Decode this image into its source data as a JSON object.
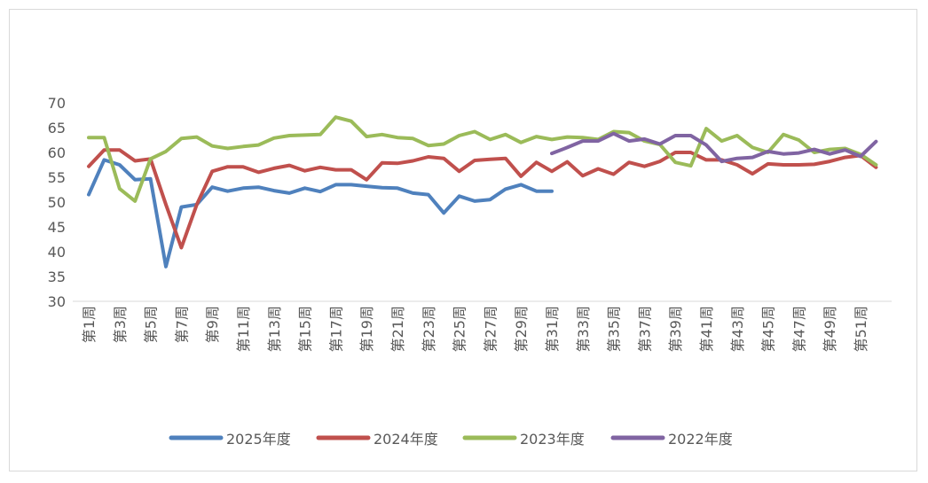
{
  "chart_data": {
    "type": "line",
    "title": "",
    "xlabel": "",
    "ylabel": "",
    "ylim": [
      30,
      70
    ],
    "yticks": [
      30,
      35,
      40,
      45,
      50,
      55,
      60,
      65,
      70
    ],
    "grid": false,
    "legend_position": "bottom",
    "categories": [
      "第1周",
      "第2周",
      "第3周",
      "第4周",
      "第5周",
      "第6周",
      "第7周",
      "第8周",
      "第9周",
      "第10周",
      "第11周",
      "第12周",
      "第13周",
      "第14周",
      "第15周",
      "第16周",
      "第17周",
      "第18周",
      "第19周",
      "第20周",
      "第21周",
      "第22周",
      "第23周",
      "第24周",
      "第25周",
      "第26周",
      "第27周",
      "第28周",
      "第29周",
      "第30周",
      "第31周",
      "第32周",
      "第33周",
      "第34周",
      "第35周",
      "第36周",
      "第37周",
      "第38周",
      "第39周",
      "第40周",
      "第41周",
      "第42周",
      "第43周",
      "第44周",
      "第45周",
      "第46周",
      "第47周",
      "第48周",
      "第49周",
      "第50周",
      "第51周",
      "第52周"
    ],
    "x_tick_labels": [
      "第1周",
      "第3周",
      "第5周",
      "第7周",
      "第9周",
      "第11周",
      "第13周",
      "第15周",
      "第17周",
      "第19周",
      "第21周",
      "第23周",
      "第25周",
      "第27周",
      "第29周",
      "第31周",
      "第33周",
      "第35周",
      "第37周",
      "第39周",
      "第41周",
      "第43周",
      "第45周",
      "第47周",
      "第49周",
      "第51周"
    ],
    "series": [
      {
        "name": "2025年度",
        "color": "#4f81bd",
        "values": [
          51.5,
          58.5,
          57.5,
          54.5,
          54.7,
          37.0,
          49.0,
          49.5,
          53.0,
          52.2,
          52.8,
          53.0,
          52.3,
          51.8,
          52.8,
          52.1,
          53.5,
          53.5,
          53.2,
          52.9,
          52.8,
          51.8,
          51.5,
          47.8,
          51.2,
          50.2,
          50.5,
          52.6,
          53.5,
          52.2,
          52.2,
          null,
          null,
          null,
          null,
          null,
          null,
          null,
          null,
          null,
          null,
          null,
          null,
          null,
          null,
          null,
          null,
          null,
          null,
          null,
          null,
          null
        ]
      },
      {
        "name": "2024年度",
        "color": "#c0504d",
        "values": [
          57.2,
          60.5,
          60.5,
          58.3,
          58.7,
          49.5,
          40.8,
          49.5,
          56.2,
          57.1,
          57.1,
          56.0,
          56.8,
          57.4,
          56.3,
          57.0,
          56.5,
          56.5,
          54.5,
          57.9,
          57.8,
          58.3,
          59.1,
          58.8,
          56.2,
          58.4,
          58.6,
          58.8,
          55.2,
          58.0,
          56.2,
          58.1,
          55.3,
          56.7,
          55.6,
          58.0,
          57.2,
          58.2,
          60.0,
          60.0,
          58.5,
          58.5,
          57.5,
          55.7,
          57.7,
          57.5,
          57.5,
          57.6,
          58.2,
          59.0,
          59.4,
          57.0
        ]
      },
      {
        "name": "2023年度",
        "color": "#9bbb59",
        "values": [
          63.0,
          63.0,
          52.7,
          50.2,
          58.7,
          60.2,
          62.8,
          63.1,
          61.3,
          60.8,
          61.2,
          61.5,
          62.9,
          63.4,
          63.5,
          63.6,
          67.1,
          66.3,
          63.2,
          63.6,
          63.0,
          62.8,
          61.4,
          61.7,
          63.4,
          64.2,
          62.6,
          63.6,
          62.0,
          63.2,
          62.6,
          63.1,
          63.0,
          62.6,
          64.2,
          64.0,
          62.3,
          61.6,
          58.0,
          57.3,
          64.8,
          62.3,
          63.4,
          61.0,
          60.0,
          63.6,
          62.5,
          60.0,
          60.6,
          60.8,
          59.6,
          57.5
        ]
      },
      {
        "name": "2022年度",
        "color": "#8064a2",
        "values": [
          null,
          null,
          null,
          null,
          null,
          null,
          null,
          null,
          null,
          null,
          null,
          null,
          null,
          null,
          null,
          null,
          null,
          null,
          null,
          null,
          null,
          null,
          null,
          null,
          null,
          null,
          null,
          null,
          null,
          null,
          59.8,
          61.0,
          62.3,
          62.3,
          63.8,
          62.3,
          62.7,
          61.7,
          63.4,
          63.4,
          61.5,
          58.2,
          58.8,
          59.0,
          60.2,
          59.7,
          59.9,
          60.6,
          59.7,
          60.5,
          59.2,
          62.2
        ]
      }
    ]
  }
}
